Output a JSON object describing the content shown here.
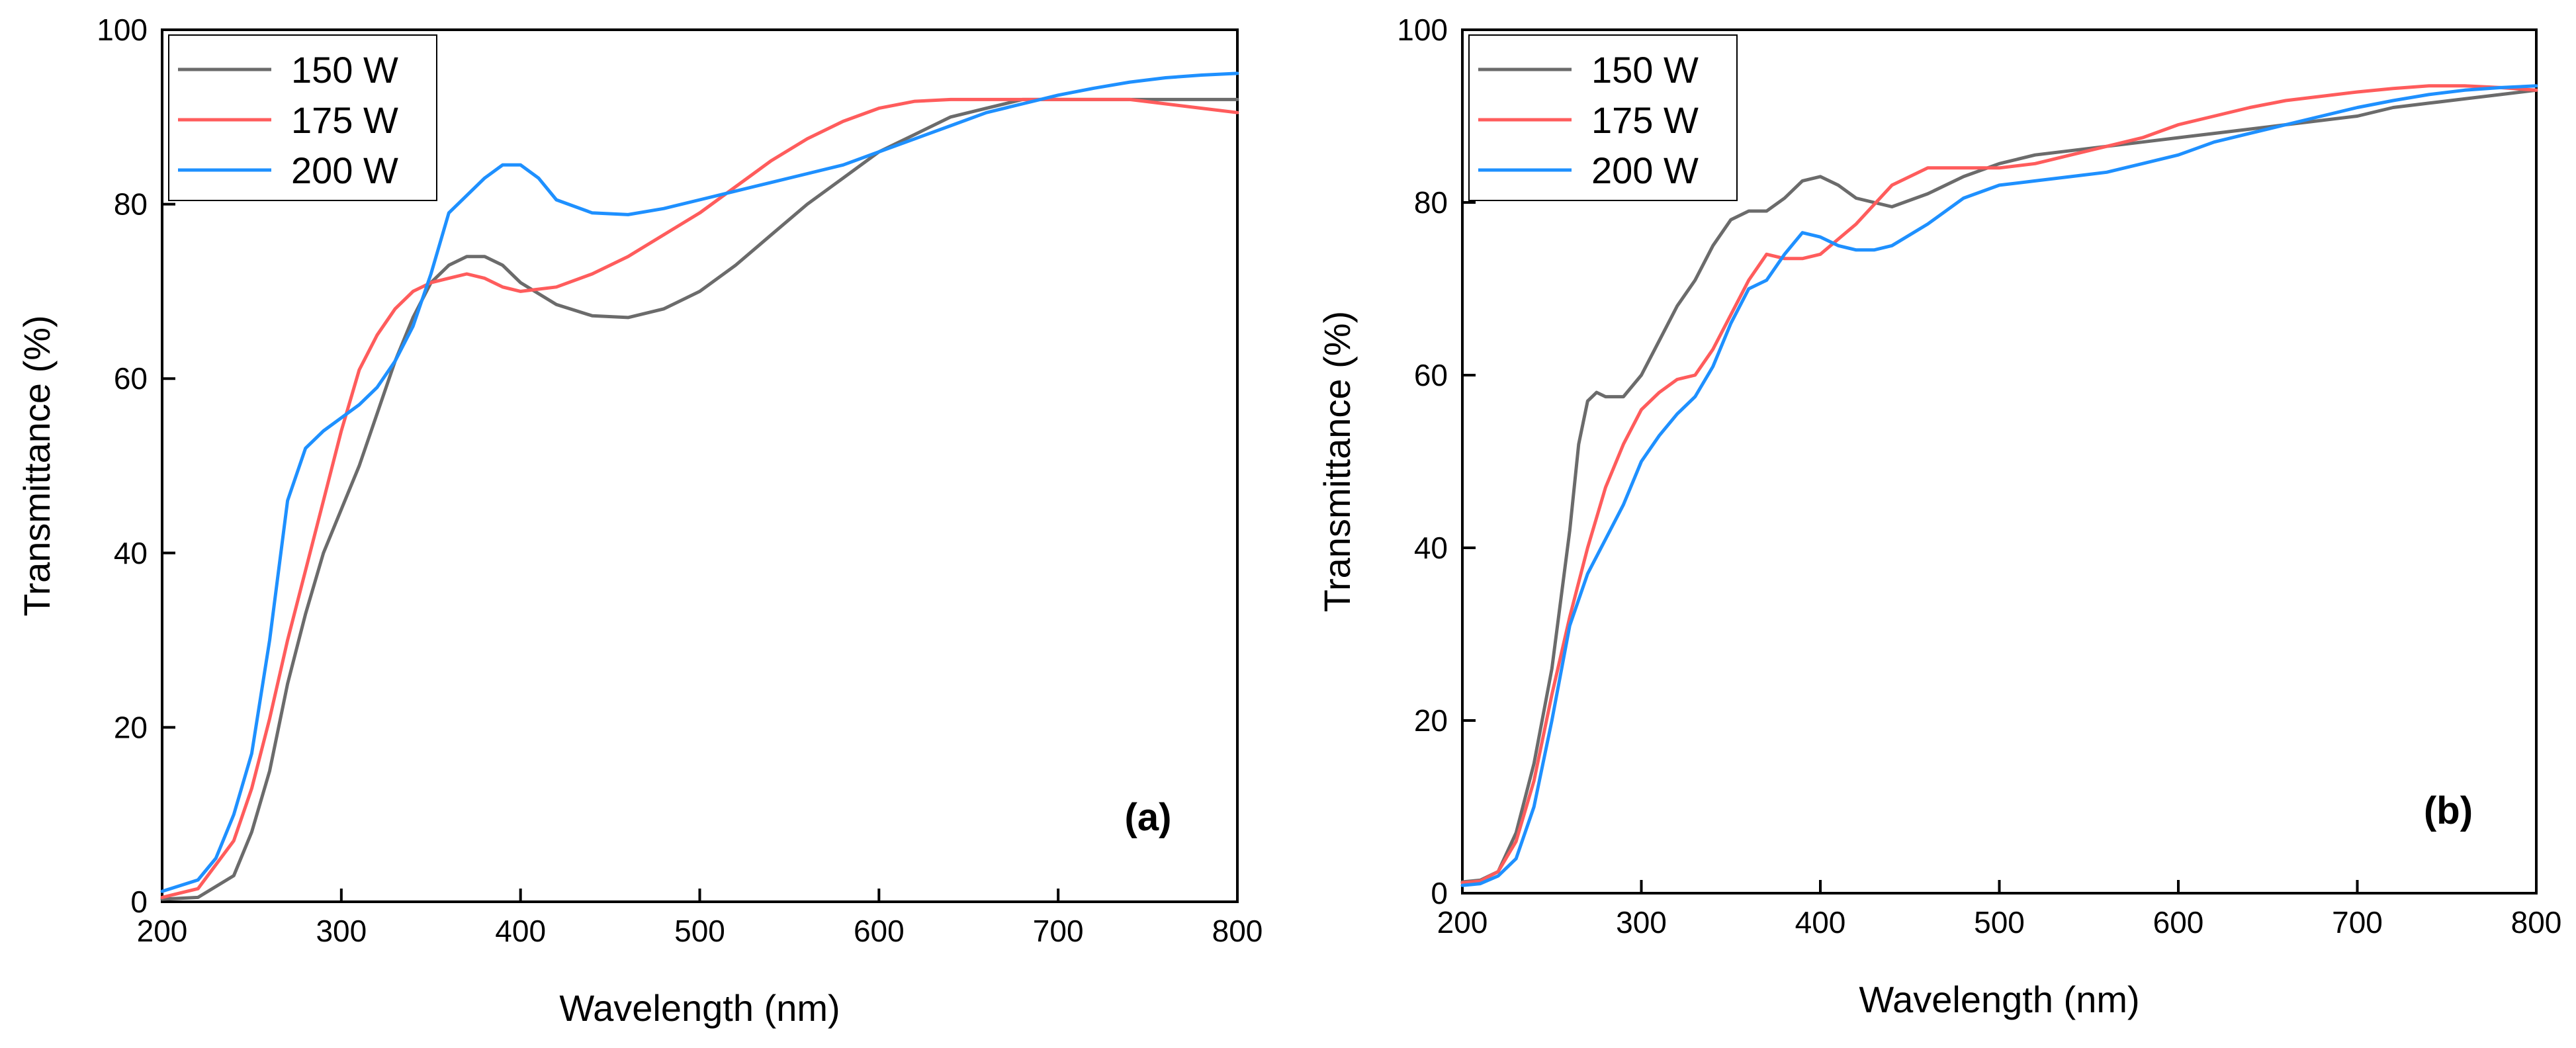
{
  "colors": {
    "s150": "#6b6b6b",
    "s175": "#ff5c5c",
    "s200": "#1e90ff"
  },
  "chart_data": [
    {
      "type": "line",
      "panel_label": "(a)",
      "xlabel": "Wavelength (nm)",
      "ylabel": "Transmittance (%)",
      "xlim": [
        200,
        800
      ],
      "ylim": [
        0,
        100
      ],
      "xticks": [
        200,
        300,
        400,
        500,
        600,
        700,
        800
      ],
      "yticks": [
        0,
        20,
        40,
        60,
        80,
        100
      ],
      "legend_position": "top-left",
      "series": [
        {
          "name": "150 W",
          "x": [
            200,
            220,
            240,
            250,
            260,
            270,
            280,
            290,
            300,
            310,
            320,
            330,
            340,
            350,
            360,
            370,
            380,
            390,
            400,
            420,
            440,
            460,
            480,
            500,
            520,
            540,
            560,
            580,
            600,
            620,
            640,
            660,
            680,
            700,
            720,
            740,
            760,
            780,
            800
          ],
          "y": [
            0.3,
            0.5,
            3,
            8,
            15,
            25,
            33,
            40,
            45,
            50,
            56,
            62,
            67,
            71,
            73,
            74,
            74,
            73,
            71,
            68.5,
            67.2,
            67,
            68,
            70,
            73,
            76.5,
            80,
            83,
            86,
            88,
            90,
            91,
            92,
            92,
            92,
            92,
            92,
            92,
            92
          ]
        },
        {
          "name": "175 W",
          "x": [
            200,
            220,
            240,
            250,
            260,
            270,
            280,
            290,
            300,
            310,
            320,
            330,
            340,
            350,
            360,
            370,
            380,
            390,
            400,
            420,
            440,
            460,
            480,
            500,
            520,
            540,
            560,
            580,
            600,
            620,
            640,
            660,
            680,
            700,
            720,
            740,
            760,
            780,
            800
          ],
          "y": [
            0.5,
            1.5,
            7,
            13,
            21,
            30,
            38,
            46,
            54,
            61,
            65,
            68,
            70,
            71,
            71.5,
            72,
            71.5,
            70.5,
            70,
            70.5,
            72,
            74,
            76.5,
            79,
            82,
            85,
            87.5,
            89.5,
            91,
            91.8,
            92,
            92,
            92,
            92,
            92,
            92,
            91.5,
            91,
            90.5
          ]
        },
        {
          "name": "200 W",
          "x": [
            200,
            220,
            230,
            240,
            250,
            260,
            270,
            280,
            290,
            300,
            310,
            320,
            330,
            340,
            350,
            360,
            370,
            380,
            390,
            400,
            410,
            420,
            440,
            460,
            480,
            500,
            520,
            540,
            560,
            580,
            600,
            620,
            640,
            660,
            680,
            700,
            720,
            740,
            760,
            780,
            800
          ],
          "y": [
            1.2,
            2.5,
            5,
            10,
            17,
            30,
            46,
            52,
            54,
            55.5,
            57,
            59,
            62,
            66,
            72,
            79,
            81,
            83,
            84.5,
            84.5,
            83,
            80.5,
            79,
            78.8,
            79.5,
            80.5,
            81.5,
            82.5,
            83.5,
            84.5,
            86,
            87.5,
            89,
            90.5,
            91.5,
            92.5,
            93.3,
            94,
            94.5,
            94.8,
            95
          ]
        }
      ]
    },
    {
      "type": "line",
      "panel_label": "(b)",
      "xlabel": "Wavelength (nm)",
      "ylabel": "Transmittance (%)",
      "xlim": [
        200,
        800
      ],
      "ylim": [
        0,
        100
      ],
      "xticks": [
        200,
        300,
        400,
        500,
        600,
        700,
        800
      ],
      "yticks": [
        0,
        20,
        40,
        60,
        80,
        100
      ],
      "legend_position": "top-left",
      "series": [
        {
          "name": "150 W",
          "x": [
            200,
            210,
            220,
            230,
            240,
            250,
            260,
            265,
            270,
            275,
            280,
            290,
            300,
            310,
            320,
            330,
            340,
            350,
            360,
            370,
            380,
            390,
            400,
            410,
            420,
            440,
            460,
            480,
            500,
            520,
            540,
            560,
            580,
            600,
            620,
            640,
            660,
            680,
            700,
            720,
            740,
            760,
            780,
            800
          ],
          "y": [
            1.3,
            1.5,
            2.5,
            7,
            15,
            26,
            42,
            52,
            57,
            58,
            57.5,
            57.5,
            60,
            64,
            68,
            71,
            75,
            78,
            79,
            79,
            80.5,
            82.5,
            83,
            82,
            80.5,
            79.5,
            81,
            83,
            84.5,
            85.5,
            86,
            86.5,
            87,
            87.5,
            88,
            88.5,
            89,
            89.5,
            90,
            91,
            91.5,
            92,
            92.5,
            93
          ]
        },
        {
          "name": "175 W",
          "x": [
            200,
            210,
            220,
            230,
            240,
            250,
            260,
            270,
            280,
            290,
            300,
            310,
            320,
            330,
            340,
            350,
            360,
            370,
            380,
            390,
            400,
            420,
            440,
            460,
            480,
            500,
            520,
            540,
            560,
            580,
            600,
            620,
            640,
            660,
            680,
            700,
            720,
            740,
            760,
            780,
            800
          ],
          "y": [
            1.2,
            1.4,
            2.5,
            6,
            13,
            23,
            32,
            40,
            47,
            52,
            56,
            58,
            59.5,
            60,
            63,
            67,
            71,
            74,
            73.5,
            73.5,
            74,
            77.5,
            82,
            84,
            84,
            84,
            84.5,
            85.5,
            86.5,
            87.5,
            89,
            90,
            91,
            91.8,
            92.3,
            92.8,
            93.2,
            93.5,
            93.5,
            93.3,
            93
          ]
        },
        {
          "name": "200 W",
          "x": [
            200,
            210,
            220,
            230,
            240,
            250,
            260,
            270,
            280,
            290,
            300,
            310,
            320,
            330,
            340,
            350,
            355,
            360,
            370,
            380,
            390,
            400,
            410,
            420,
            430,
            440,
            460,
            480,
            500,
            520,
            540,
            560,
            580,
            600,
            620,
            640,
            660,
            680,
            700,
            720,
            740,
            760,
            780,
            800
          ],
          "y": [
            0.9,
            1.1,
            2,
            4,
            10,
            20,
            31,
            37,
            41,
            45,
            50,
            53,
            55.5,
            57.5,
            61,
            66,
            68,
            70,
            71,
            74,
            76.5,
            76,
            75,
            74.5,
            74.5,
            75,
            77.5,
            80.5,
            82,
            82.5,
            83,
            83.5,
            84.5,
            85.5,
            87,
            88,
            89,
            90,
            91,
            91.8,
            92.5,
            93,
            93.3,
            93.5
          ]
        }
      ]
    }
  ]
}
